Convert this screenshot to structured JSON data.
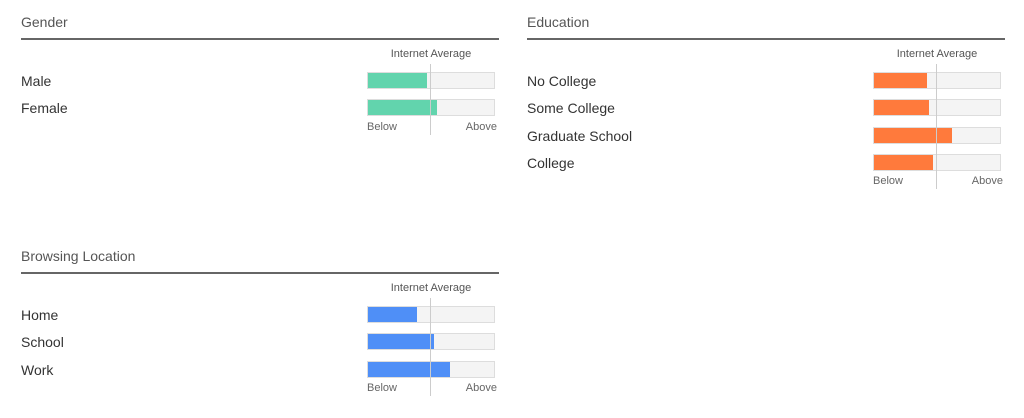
{
  "chart_data": [
    {
      "type": "bar",
      "title": "Gender",
      "reference_label": "Internet Average",
      "below_label": "Below",
      "above_label": "Above",
      "color": "#62d4ad",
      "categories": [
        "Male",
        "Female"
      ],
      "values": [
        0.47,
        0.55
      ]
    },
    {
      "type": "bar",
      "title": "Education",
      "reference_label": "Internet Average",
      "below_label": "Below",
      "above_label": "Above",
      "color": "#ff7a3c",
      "categories": [
        "No College",
        "Some College",
        "Graduate School",
        "College"
      ],
      "values": [
        0.42,
        0.44,
        0.62,
        0.47
      ]
    },
    {
      "type": "bar",
      "title": "Browsing Location",
      "reference_label": "Internet Average",
      "below_label": "Below",
      "above_label": "Above",
      "color": "#4f8ff7",
      "categories": [
        "Home",
        "School",
        "Work"
      ],
      "values": [
        0.39,
        0.52,
        0.65
      ]
    }
  ]
}
